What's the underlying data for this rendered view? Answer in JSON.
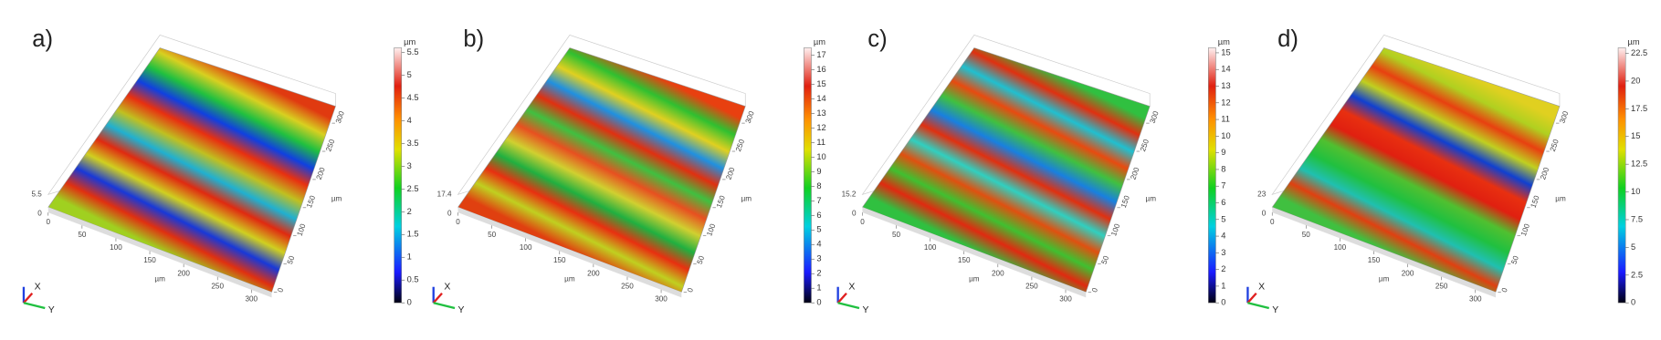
{
  "panels": [
    {
      "label": "a)",
      "unit": "µm",
      "colorbar_lim": [
        0,
        5.6
      ],
      "colorbar_ticks": [
        0,
        0.5,
        1,
        1.5,
        2,
        2.5,
        3,
        3.5,
        4,
        4.5,
        5,
        5.5
      ],
      "z_max": 5.5,
      "z_min": 0,
      "axis_lim": [
        0,
        330
      ],
      "axis_ticks": [
        0,
        50,
        100,
        150,
        200,
        250,
        300
      ],
      "axis_unit": "µm",
      "triad": {
        "x": "X",
        "y": "Y"
      }
    },
    {
      "label": "b)",
      "unit": "µm",
      "colorbar_lim": [
        0,
        17.5
      ],
      "colorbar_ticks": [
        0,
        1,
        2,
        3,
        4,
        5,
        6,
        7,
        8,
        9,
        10,
        11,
        12,
        13,
        14,
        15,
        16,
        17
      ],
      "z_max": 17.4,
      "z_min": 0,
      "axis_lim": [
        0,
        330
      ],
      "axis_ticks": [
        0,
        50,
        100,
        150,
        200,
        250,
        300
      ],
      "axis_unit": "µm",
      "triad": {
        "x": "X",
        "y": "Y"
      }
    },
    {
      "label": "c)",
      "unit": "µm",
      "colorbar_lim": [
        0,
        15.3
      ],
      "colorbar_ticks": [
        0,
        1,
        2,
        3,
        4,
        5,
        6,
        7,
        8,
        9,
        10,
        11,
        12,
        13,
        14,
        15
      ],
      "z_max": 15.2,
      "z_min": 0,
      "axis_lim": [
        0,
        330
      ],
      "axis_ticks": [
        0,
        50,
        100,
        150,
        200,
        250,
        300
      ],
      "axis_unit": "µm",
      "triad": {
        "x": "X",
        "y": "Y"
      }
    },
    {
      "label": "d)",
      "unit": "µm",
      "colorbar_lim": [
        0,
        23
      ],
      "colorbar_ticks": [
        0,
        2.5,
        5,
        7.5,
        10,
        12.5,
        15,
        17.5,
        20,
        22.5
      ],
      "z_max": 23,
      "z_min": 0,
      "axis_lim": [
        0,
        330
      ],
      "axis_ticks": [
        0,
        50,
        100,
        150,
        200,
        250,
        300
      ],
      "axis_unit": "µm",
      "triad": {
        "x": "X",
        "y": "Y"
      }
    }
  ]
}
